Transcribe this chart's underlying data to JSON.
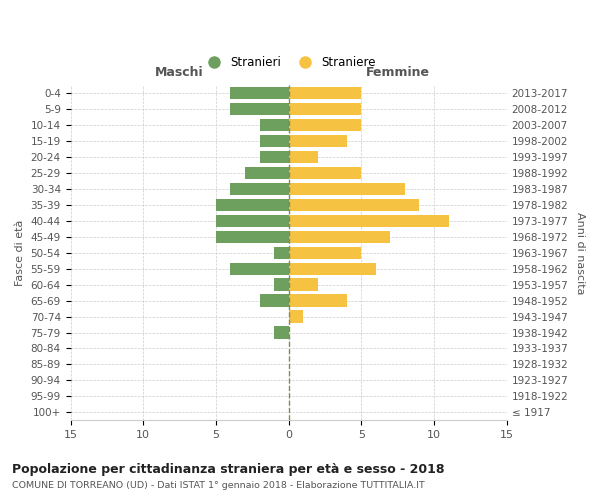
{
  "age_groups": [
    "0-4",
    "5-9",
    "10-14",
    "15-19",
    "20-24",
    "25-29",
    "30-34",
    "35-39",
    "40-44",
    "45-49",
    "50-54",
    "55-59",
    "60-64",
    "65-69",
    "70-74",
    "75-79",
    "80-84",
    "85-89",
    "90-94",
    "95-99",
    "100+"
  ],
  "birth_years": [
    "2013-2017",
    "2008-2012",
    "2003-2007",
    "1998-2002",
    "1993-1997",
    "1988-1992",
    "1983-1987",
    "1978-1982",
    "1973-1977",
    "1968-1972",
    "1963-1967",
    "1958-1962",
    "1953-1957",
    "1948-1952",
    "1943-1947",
    "1938-1942",
    "1933-1937",
    "1928-1932",
    "1923-1927",
    "1918-1922",
    "≤ 1917"
  ],
  "males": [
    4,
    4,
    2,
    2,
    2,
    3,
    4,
    5,
    5,
    5,
    1,
    4,
    1,
    2,
    0,
    1,
    0,
    0,
    0,
    0,
    0
  ],
  "females": [
    5,
    5,
    5,
    4,
    2,
    5,
    8,
    9,
    11,
    7,
    5,
    6,
    2,
    4,
    1,
    0,
    0,
    0,
    0,
    0,
    0
  ],
  "male_color": "#6d9f5e",
  "female_color": "#f5c242",
  "background_color": "#ffffff",
  "grid_color": "#cccccc",
  "center_line_color": "#888855",
  "title": "Popolazione per cittadinanza straniera per età e sesso - 2018",
  "subtitle": "COMUNE DI TORREANO (UD) - Dati ISTAT 1° gennaio 2018 - Elaborazione TUTTITALIA.IT",
  "left_label": "Maschi",
  "right_label": "Femmine",
  "left_axis_label": "Fasce di età",
  "right_axis_label": "Anni di nascita",
  "legend_male": "Stranieri",
  "legend_female": "Straniere",
  "xlim": 15
}
